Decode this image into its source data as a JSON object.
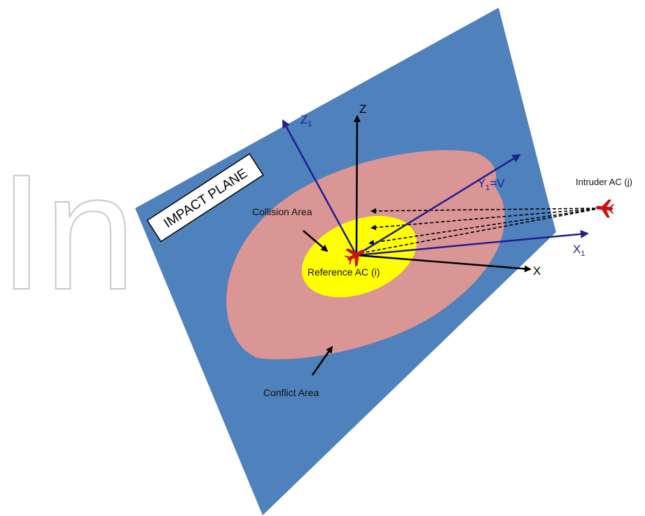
{
  "watermark": {
    "text": "In"
  },
  "plane": {
    "label": "IMPACT PLANE"
  },
  "areas": {
    "collision": {
      "label": "Collision Area"
    },
    "conflict": {
      "label": "Conflict Area"
    }
  },
  "aircraft": {
    "reference": {
      "label": "Reference AC (i)"
    },
    "intruder": {
      "label": "Intruder AC (j)"
    }
  },
  "axes": {
    "z": {
      "label": "Z"
    },
    "x": {
      "label": "X"
    },
    "z1": {
      "label": "Z",
      "subscript": "1"
    },
    "x1": {
      "label": "X",
      "subscript": "1"
    },
    "y1": {
      "label": "Y",
      "subscript": "1",
      "suffix": "=V"
    }
  },
  "colors": {
    "plane": "#4f81bd",
    "conflict_area": "#d99694",
    "collision_area": "#ffff00",
    "axis_blue": "#1f1f8f",
    "aircraft_red": "#cc1010",
    "plane_label_box": "#ffffff",
    "watermark": "#c8c8c8"
  }
}
